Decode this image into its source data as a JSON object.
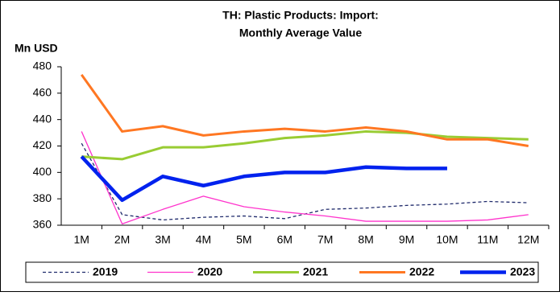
{
  "chart_data": {
    "type": "line",
    "title": [
      "TH: Plastic Products: Import:",
      "Monthly Average Value"
    ],
    "y_label": "Mn USD",
    "categories": [
      "1M",
      "2M",
      "3M",
      "4M",
      "5M",
      "6M",
      "7M",
      "8M",
      "9M",
      "10M",
      "11M",
      "12M"
    ],
    "series": [
      {
        "name": "2019",
        "color": "#1f2a6b",
        "values": [
          422,
          368,
          364,
          366,
          367,
          365,
          372,
          373,
          375,
          376,
          378,
          377
        ]
      },
      {
        "name": "2020",
        "color": "#ff33cc",
        "values": [
          431,
          361,
          372,
          382,
          374,
          370,
          367,
          363,
          363,
          363,
          364,
          368
        ]
      },
      {
        "name": "2021",
        "color": "#99cc33",
        "values": [
          412,
          410,
          419,
          419,
          422,
          426,
          428,
          431,
          430,
          427,
          426,
          425
        ]
      },
      {
        "name": "2022",
        "color": "#ff7722",
        "values": [
          474,
          431,
          435,
          428,
          431,
          433,
          431,
          434,
          431,
          425,
          425,
          420
        ]
      },
      {
        "name": "2023",
        "color": "#0022ee",
        "values": [
          412,
          379,
          397,
          390,
          397,
          400,
          400,
          404,
          403,
          403,
          null,
          null
        ]
      }
    ],
    "ylim": [
      360,
      480
    ],
    "yticks": [
      360,
      380,
      400,
      420,
      440,
      460,
      480
    ],
    "legend": "bottom"
  }
}
